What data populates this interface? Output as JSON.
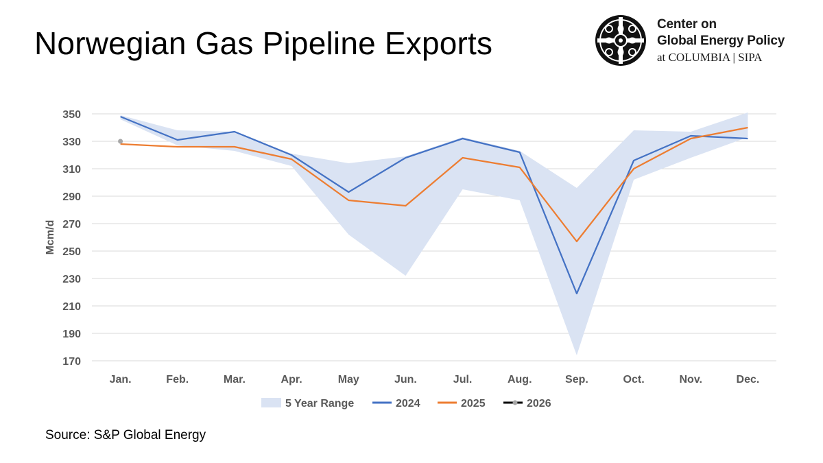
{
  "header": {
    "title": "Norwegian Gas Pipeline Exports",
    "brand_line1": "Center on",
    "brand_line2": "Global Energy Policy",
    "brand_line3": "at COLUMBIA | SIPA",
    "logo_icon": "cgep-seal-icon"
  },
  "footer": {
    "source": "Source: S&P Global Energy"
  },
  "colors": {
    "band": "#dae3f3",
    "s2024": "#4472c4",
    "s2025": "#ed7d31",
    "s2026": "#000000",
    "s2026_marker": "#a6a6a6",
    "grid": "#d9d9d9",
    "axis_text": "#595959"
  },
  "chart_data": {
    "type": "line",
    "title": "",
    "xlabel": "",
    "ylabel": "Mcm/d",
    "ylim": [
      170,
      350
    ],
    "yticks": [
      170,
      190,
      210,
      230,
      250,
      270,
      290,
      310,
      330,
      350
    ],
    "grid": true,
    "legend_position": "bottom",
    "categories": [
      "Jan.",
      "Feb.",
      "Mar.",
      "Apr.",
      "May",
      "Jun.",
      "Jul.",
      "Aug.",
      "Sep.",
      "Oct.",
      "Nov.",
      "Dec."
    ],
    "range": {
      "name": "5 Year Range",
      "min": [
        346,
        327,
        323,
        312,
        262,
        232,
        295,
        287,
        174,
        302,
        318,
        333
      ],
      "max": [
        349,
        338,
        337,
        321,
        314,
        319,
        333,
        323,
        296,
        338,
        337,
        351
      ]
    },
    "series": [
      {
        "name": "2024",
        "values": [
          348,
          331,
          337,
          320,
          293,
          318,
          332,
          322,
          219,
          316,
          334,
          332
        ]
      },
      {
        "name": "2025",
        "values": [
          328,
          326,
          326,
          317,
          287,
          283,
          318,
          311,
          257,
          310,
          332,
          340
        ]
      },
      {
        "name": "2026",
        "values": [
          330,
          null,
          null,
          null,
          null,
          null,
          null,
          null,
          null,
          null,
          null,
          null
        ]
      }
    ]
  }
}
